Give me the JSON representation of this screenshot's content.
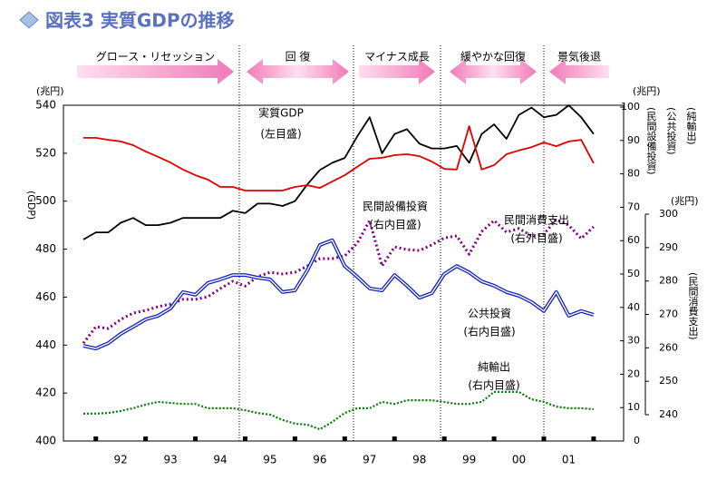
{
  "chart_data": {
    "type": "line",
    "title": "図表3 実質GDPの推移",
    "categories": [
      null,
      null,
      null,
      "92",
      null,
      null,
      null,
      "93",
      null,
      null,
      null,
      "94",
      null,
      null,
      null,
      "95",
      null,
      null,
      null,
      "96",
      null,
      null,
      null,
      "97",
      null,
      null,
      null,
      "98",
      null,
      null,
      null,
      "99",
      null,
      null,
      null,
      "00",
      null,
      null,
      null,
      "01",
      null,
      null
    ],
    "ylim": [
      400,
      540
    ],
    "yticks": [
      400,
      420,
      440,
      460,
      480,
      500,
      520,
      540
    ],
    "y2lim": [
      0,
      100
    ],
    "y2ticks": [
      0,
      10,
      20,
      30,
      40,
      50,
      60,
      70,
      80,
      90,
      100
    ],
    "y3lim": [
      240,
      300
    ],
    "y3ticks": [
      240,
      250,
      260,
      270,
      280,
      290,
      300
    ],
    "y_unit": "(兆円)",
    "y_label": "(GDP)",
    "y2_unit": "(兆円)",
    "y2_labels": [
      "(民間設備投資)",
      "(公共投資)",
      "(純輸出)"
    ],
    "y3_unit": "(兆円)",
    "y3_label": "(民間消費支出)",
    "phases": [
      "グロース・リセッション",
      "回 復",
      "マイナス成長",
      "緩やかな回復",
      "景気後退"
    ],
    "series": [
      {
        "name": "実質GDP",
        "note": "(左目盛)",
        "color": "#000000",
        "axis": "y",
        "values": [
          484,
          487,
          487,
          491,
          493,
          490,
          490,
          491,
          493,
          493,
          493,
          493,
          496,
          495,
          499,
          499,
          498,
          500,
          507,
          513,
          516,
          518,
          527,
          535,
          520,
          528,
          530,
          524,
          522,
          522,
          523,
          516,
          528,
          532,
          526,
          536,
          539,
          535,
          536,
          540,
          535,
          528
        ]
      },
      {
        "name": "民間設備投資",
        "note": "(右内目盛)",
        "color": "#e00000",
        "axis": "y2",
        "values": [
          90.8,
          90.8,
          90.2,
          89.7,
          88.6,
          86.7,
          85.1,
          83.4,
          81.3,
          79.6,
          78.3,
          76.1,
          76.1,
          75,
          75,
          75,
          75,
          76.1,
          76.6,
          75.8,
          77.7,
          79.6,
          82.1,
          84.5,
          84.8,
          85.6,
          85.9,
          85.3,
          83.7,
          81.5,
          81.3,
          94.3,
          81.3,
          82.6,
          85.9,
          87,
          88,
          89.4,
          88.3,
          89.7,
          90.2,
          83.2
        ]
      },
      {
        "name": "民間消費支出",
        "note": "(右外目盛)",
        "color": "#800080",
        "axis": "y3",
        "values": [
          261.4,
          266.3,
          265.8,
          268.5,
          270.4,
          271.2,
          272.3,
          273.1,
          274.5,
          274.5,
          275.3,
          277.7,
          279.9,
          278.5,
          281.3,
          282.6,
          282.1,
          282.6,
          284.5,
          286.7,
          286.7,
          287.5,
          291.3,
          298.1,
          284.5,
          290.2,
          289.4,
          289.1,
          290.8,
          292.9,
          293.5,
          288,
          294.8,
          298.1,
          294.6,
          295.7,
          293.5,
          294,
          298.4,
          296.7,
          292.7,
          296.2
        ]
      },
      {
        "name": "公共投資",
        "note": "(右内目盛)",
        "color": "#1020c0",
        "axis": "y2",
        "values": [
          28.5,
          27.7,
          29.3,
          32.1,
          34.2,
          36.4,
          37.5,
          39.7,
          44.6,
          43.8,
          47.3,
          48.4,
          49.7,
          49.7,
          48.9,
          48.4,
          44.6,
          45.1,
          51.1,
          58.7,
          60.1,
          52.4,
          49.2,
          45.7,
          45.1,
          49.7,
          46.5,
          42.9,
          44.3,
          50,
          52.4,
          50.5,
          47.8,
          46.5,
          44.6,
          43.5,
          41.6,
          38.9,
          44.6,
          37.5,
          38.9,
          37.8
        ]
      },
      {
        "name": "純輸出",
        "note": "(右内目盛)",
        "color": "#008000",
        "axis": "y2",
        "values": [
          8.2,
          8.2,
          8.4,
          9,
          9.8,
          10.9,
          11.7,
          11.4,
          11.1,
          11.1,
          9.8,
          9.8,
          9.8,
          9.2,
          8.4,
          7.9,
          6.3,
          5.2,
          4.9,
          3.5,
          5.7,
          8.4,
          9.8,
          9.8,
          11.7,
          11.1,
          12.2,
          12.2,
          12.2,
          11.7,
          11.1,
          11.1,
          11.7,
          14.7,
          14.7,
          14.7,
          12.5,
          11.7,
          10.3,
          9.8,
          9.8,
          9.5
        ]
      }
    ]
  }
}
